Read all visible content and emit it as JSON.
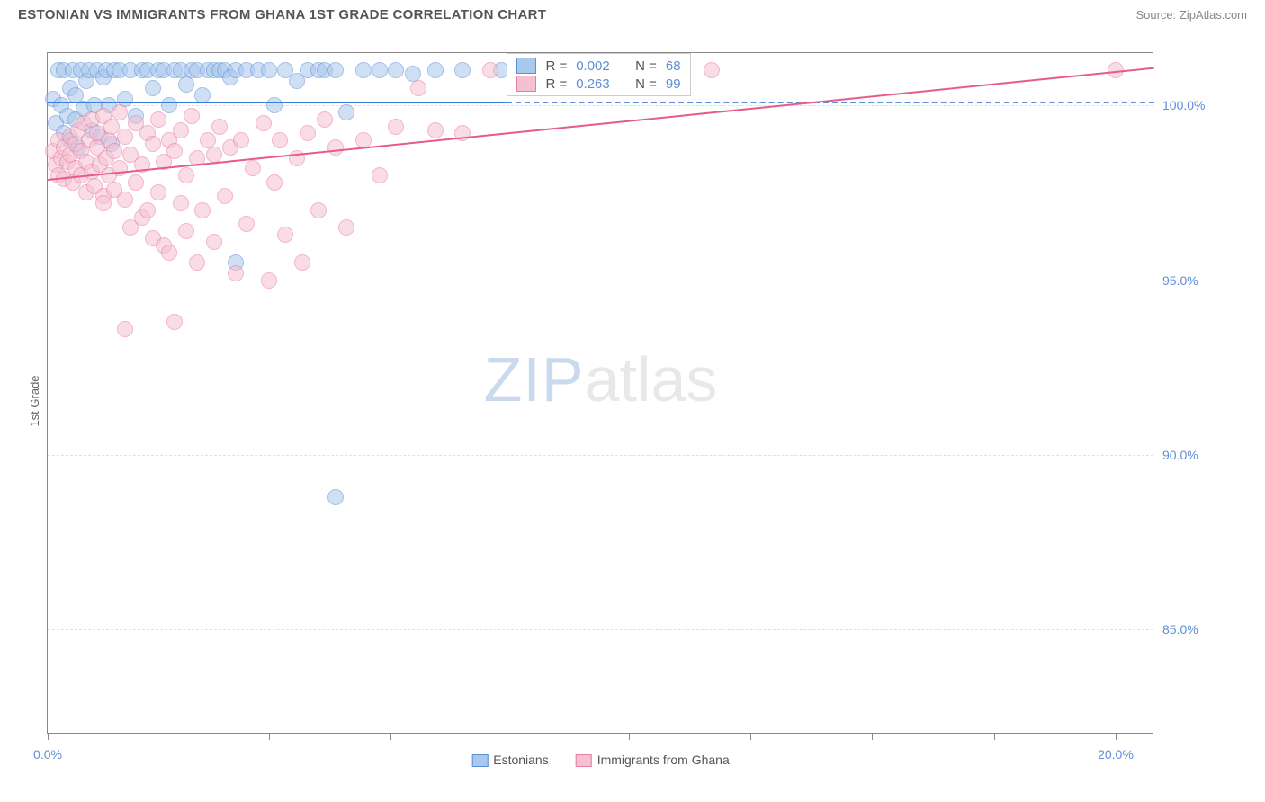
{
  "title": "ESTONIAN VS IMMIGRANTS FROM GHANA 1ST GRADE CORRELATION CHART",
  "source": "Source: ZipAtlas.com",
  "ylabel": "1st Grade",
  "watermark_zip": "ZIP",
  "watermark_atlas": "atlas",
  "chart": {
    "type": "scatter",
    "xlim": [
      0,
      20
    ],
    "ylim": [
      82,
      101.5
    ],
    "xtick_positions": [
      0,
      1.8,
      4.0,
      6.2,
      8.3,
      10.5,
      12.7,
      14.9,
      17.1,
      19.3
    ],
    "xtick_labels": {
      "0": "0.0%",
      "9": "20.0%"
    },
    "yticks": [
      85,
      90,
      95,
      100
    ],
    "ytick_labels": [
      "85.0%",
      "90.0%",
      "95.0%",
      "100.0%"
    ],
    "background_color": "#ffffff",
    "grid_color": "#e0e0e0",
    "axis_color": "#888888",
    "marker_radius": 9,
    "marker_opacity": 0.55,
    "series": [
      {
        "name": "Estonians",
        "fill": "#a8c8ed",
        "stroke": "#5b8fd6",
        "R": "0.002",
        "N": "68",
        "trend": {
          "x1": 0,
          "y1": 100.1,
          "x2": 8.3,
          "y2": 100.1,
          "solid_color": "#3b7dd8",
          "dash_x2": 20,
          "dash_color": "#5b8fd6"
        },
        "points": [
          [
            0.1,
            100.2
          ],
          [
            0.15,
            99.5
          ],
          [
            0.2,
            101.0
          ],
          [
            0.25,
            100.0
          ],
          [
            0.3,
            99.2
          ],
          [
            0.3,
            101.0
          ],
          [
            0.35,
            99.7
          ],
          [
            0.4,
            100.5
          ],
          [
            0.4,
            99.0
          ],
          [
            0.45,
            101.0
          ],
          [
            0.5,
            99.6
          ],
          [
            0.5,
            100.3
          ],
          [
            0.55,
            98.8
          ],
          [
            0.6,
            101.0
          ],
          [
            0.65,
            99.9
          ],
          [
            0.7,
            100.7
          ],
          [
            0.75,
            101.0
          ],
          [
            0.8,
            99.3
          ],
          [
            0.85,
            100.0
          ],
          [
            0.9,
            101.0
          ],
          [
            0.95,
            99.1
          ],
          [
            1.0,
            100.8
          ],
          [
            1.05,
            101.0
          ],
          [
            1.1,
            100.0
          ],
          [
            1.15,
            98.9
          ],
          [
            1.2,
            101.0
          ],
          [
            1.3,
            101.0
          ],
          [
            1.4,
            100.2
          ],
          [
            1.5,
            101.0
          ],
          [
            1.6,
            99.7
          ],
          [
            1.7,
            101.0
          ],
          [
            1.8,
            101.0
          ],
          [
            1.9,
            100.5
          ],
          [
            2.0,
            101.0
          ],
          [
            2.1,
            101.0
          ],
          [
            2.2,
            100.0
          ],
          [
            2.3,
            101.0
          ],
          [
            2.4,
            101.0
          ],
          [
            2.5,
            100.6
          ],
          [
            2.6,
            101.0
          ],
          [
            2.7,
            101.0
          ],
          [
            2.8,
            100.3
          ],
          [
            2.9,
            101.0
          ],
          [
            3.0,
            101.0
          ],
          [
            3.1,
            101.0
          ],
          [
            3.2,
            101.0
          ],
          [
            3.3,
            100.8
          ],
          [
            3.4,
            101.0
          ],
          [
            3.6,
            101.0
          ],
          [
            3.8,
            101.0
          ],
          [
            4.0,
            101.0
          ],
          [
            4.1,
            100.0
          ],
          [
            4.3,
            101.0
          ],
          [
            4.5,
            100.7
          ],
          [
            4.7,
            101.0
          ],
          [
            4.9,
            101.0
          ],
          [
            5.0,
            101.0
          ],
          [
            5.2,
            101.0
          ],
          [
            5.4,
            99.8
          ],
          [
            5.7,
            101.0
          ],
          [
            6.0,
            101.0
          ],
          [
            6.3,
            101.0
          ],
          [
            6.6,
            100.9
          ],
          [
            7.0,
            101.0
          ],
          [
            7.5,
            101.0
          ],
          [
            8.2,
            101.0
          ],
          [
            3.4,
            95.5
          ],
          [
            5.2,
            88.8
          ]
        ]
      },
      {
        "name": "Immigrants from Ghana",
        "fill": "#f5c1d0",
        "stroke": "#e87ba0",
        "R": "0.263",
        "N": "99",
        "trend": {
          "x1": 0,
          "y1": 97.9,
          "x2": 20,
          "y2": 101.1,
          "solid_color": "#e85a8a"
        },
        "points": [
          [
            0.1,
            98.7
          ],
          [
            0.15,
            98.3
          ],
          [
            0.2,
            99.0
          ],
          [
            0.2,
            98.0
          ],
          [
            0.25,
            98.5
          ],
          [
            0.3,
            98.8
          ],
          [
            0.3,
            97.9
          ],
          [
            0.35,
            98.4
          ],
          [
            0.4,
            98.6
          ],
          [
            0.4,
            99.1
          ],
          [
            0.45,
            97.8
          ],
          [
            0.5,
            98.9
          ],
          [
            0.5,
            98.2
          ],
          [
            0.55,
            99.3
          ],
          [
            0.6,
            98.0
          ],
          [
            0.6,
            98.7
          ],
          [
            0.65,
            99.5
          ],
          [
            0.7,
            97.5
          ],
          [
            0.7,
            98.4
          ],
          [
            0.75,
            99.0
          ],
          [
            0.8,
            98.1
          ],
          [
            0.8,
            99.6
          ],
          [
            0.85,
            97.7
          ],
          [
            0.9,
            98.8
          ],
          [
            0.9,
            99.2
          ],
          [
            0.95,
            98.3
          ],
          [
            1.0,
            99.7
          ],
          [
            1.0,
            97.4
          ],
          [
            1.05,
            98.5
          ],
          [
            1.1,
            99.0
          ],
          [
            1.1,
            98.0
          ],
          [
            1.15,
            99.4
          ],
          [
            1.2,
            97.6
          ],
          [
            1.2,
            98.7
          ],
          [
            1.3,
            99.8
          ],
          [
            1.3,
            98.2
          ],
          [
            1.4,
            97.3
          ],
          [
            1.4,
            99.1
          ],
          [
            1.5,
            98.6
          ],
          [
            1.5,
            96.5
          ],
          [
            1.6,
            99.5
          ],
          [
            1.6,
            97.8
          ],
          [
            1.7,
            98.3
          ],
          [
            1.7,
            96.8
          ],
          [
            1.8,
            99.2
          ],
          [
            1.8,
            97.0
          ],
          [
            1.9,
            98.9
          ],
          [
            1.9,
            96.2
          ],
          [
            2.0,
            99.6
          ],
          [
            2.0,
            97.5
          ],
          [
            2.1,
            96.0
          ],
          [
            2.1,
            98.4
          ],
          [
            2.2,
            99.0
          ],
          [
            2.2,
            95.8
          ],
          [
            2.3,
            98.7
          ],
          [
            2.4,
            97.2
          ],
          [
            2.4,
            99.3
          ],
          [
            2.5,
            96.4
          ],
          [
            2.5,
            98.0
          ],
          [
            2.6,
            99.7
          ],
          [
            2.7,
            95.5
          ],
          [
            2.7,
            98.5
          ],
          [
            2.8,
            97.0
          ],
          [
            2.9,
            99.0
          ],
          [
            3.0,
            96.1
          ],
          [
            3.0,
            98.6
          ],
          [
            3.1,
            99.4
          ],
          [
            3.2,
            97.4
          ],
          [
            3.3,
            98.8
          ],
          [
            3.4,
            95.2
          ],
          [
            3.5,
            99.0
          ],
          [
            3.6,
            96.6
          ],
          [
            3.7,
            98.2
          ],
          [
            3.9,
            99.5
          ],
          [
            4.0,
            95.0
          ],
          [
            4.1,
            97.8
          ],
          [
            4.2,
            99.0
          ],
          [
            4.3,
            96.3
          ],
          [
            4.5,
            98.5
          ],
          [
            4.6,
            95.5
          ],
          [
            4.7,
            99.2
          ],
          [
            4.9,
            97.0
          ],
          [
            5.0,
            99.6
          ],
          [
            5.2,
            98.8
          ],
          [
            5.4,
            96.5
          ],
          [
            5.7,
            99.0
          ],
          [
            6.0,
            98.0
          ],
          [
            6.3,
            99.4
          ],
          [
            6.7,
            100.5
          ],
          [
            7.0,
            99.3
          ],
          [
            7.5,
            99.2
          ],
          [
            8.0,
            101.0
          ],
          [
            9.0,
            100.7
          ],
          [
            10.5,
            101.0
          ],
          [
            12.0,
            101.0
          ],
          [
            1.4,
            93.6
          ],
          [
            1.0,
            97.2
          ],
          [
            2.3,
            93.8
          ],
          [
            19.3,
            101.0
          ]
        ]
      }
    ]
  },
  "legend_inside": {
    "left_pct": 41.5,
    "top_pct": 0,
    "rows": [
      {
        "swatch_fill": "#a8c8ed",
        "swatch_stroke": "#5b8fd6",
        "r_label": "R =",
        "r_val": "0.002",
        "n_label": "N =",
        "n_val": "68"
      },
      {
        "swatch_fill": "#f5c1d0",
        "swatch_stroke": "#e87ba0",
        "r_label": "R =",
        "r_val": "0.263",
        "n_label": "N =",
        "n_val": "99"
      }
    ]
  },
  "legend_bottom": [
    {
      "swatch_fill": "#a8c8ed",
      "swatch_stroke": "#5b8fd6",
      "label": "Estonians"
    },
    {
      "swatch_fill": "#f5c1d0",
      "swatch_stroke": "#e87ba0",
      "label": "Immigrants from Ghana"
    }
  ]
}
